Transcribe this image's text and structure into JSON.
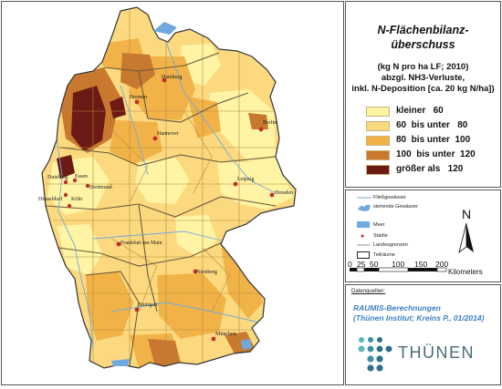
{
  "legend": {
    "title_line1": "N-Flächenbilanz-",
    "title_line2": "überschuss",
    "subtitle_line1": "(kg N pro ha LF; 2010)",
    "subtitle_line2": "abzgl. NH3-Verluste,",
    "subtitle_line3": "inkl. N-Deposition [ca. 20 kg N/ha])",
    "classes": [
      {
        "label": "kleiner   60",
        "color": "#fff3a4"
      },
      {
        "label": "60  bis unter   80",
        "color": "#fcd97f"
      },
      {
        "label": "80  bis unter  100",
        "color": "#f1b348"
      },
      {
        "label": "100  bis unter  120",
        "color": "#c8782f"
      },
      {
        "label": "größer als   120",
        "color": "#6c1a14"
      }
    ]
  },
  "key": {
    "rivers": "Fließgewässer",
    "lakes": "stehende Gewässer",
    "sea": "Meer",
    "cities": "Städte",
    "borders": "Landesgrenzen",
    "subareas": "Teilräume",
    "north": "N",
    "scale_ticks": [
      "0",
      "25",
      "50",
      "100",
      "150",
      "200"
    ],
    "scale_unit": "Kilometers"
  },
  "source": {
    "heading": "Datenquellen:",
    "line1": "RAUMIS-Berechnungen",
    "line2": "(Thünen Institut; Kreins P., 01/2014)",
    "brand": "THÜNEN"
  },
  "cities": [
    {
      "name": "Hamburg"
    },
    {
      "name": "Bremen"
    },
    {
      "name": "Berlin"
    },
    {
      "name": "Hannover"
    },
    {
      "name": "Duisburg"
    },
    {
      "name": "Essen"
    },
    {
      "name": "Dortmund"
    },
    {
      "name": "Düsseldorf"
    },
    {
      "name": "Köln"
    },
    {
      "name": "Leipzig"
    },
    {
      "name": "Dresden"
    },
    {
      "name": "Frankfurt am Main"
    },
    {
      "name": "Nürnberg"
    },
    {
      "name": "Stuttgart"
    },
    {
      "name": "München"
    }
  ],
  "colors": {
    "class1": "#fff3a4",
    "class2": "#fcd97f",
    "class3": "#f1b348",
    "class4": "#c8782f",
    "class5": "#6c1a14",
    "water": "#6fa9e0",
    "city": "#c0302b"
  }
}
